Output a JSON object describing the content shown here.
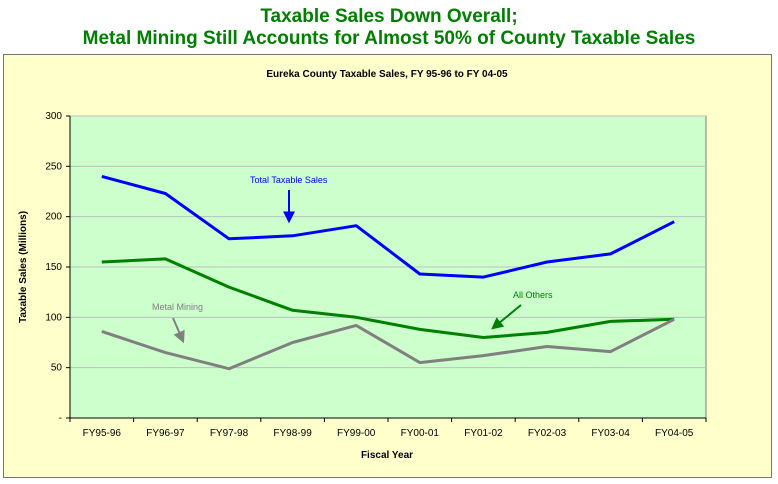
{
  "headline": {
    "line1": "Taxable Sales Down Overall;",
    "line2": "Metal Mining Still Accounts for Almost 50% of County Taxable Sales"
  },
  "colors": {
    "headline": "#008000",
    "frame_bg": "#ffffcc",
    "plot_bg": "#ccffcc",
    "total": "#0000ff",
    "others": "#008000",
    "metal": "#808080",
    "grid": "#c0c0c0"
  },
  "chart_data": {
    "type": "line",
    "title": "Eureka County Taxable Sales, FY 95-96 to FY 04-05",
    "xlabel": "Fiscal Year",
    "ylabel": "Taxable Sales (Millions)",
    "ylim": [
      0,
      300
    ],
    "yticks": [
      "-",
      "50",
      "100",
      "150",
      "200",
      "250",
      "300"
    ],
    "grid": true,
    "categories": [
      "FY95-96",
      "FY96-97",
      "FY97-98",
      "FY98-99",
      "FY99-00",
      "FY00-01",
      "FY01-02",
      "FY02-03",
      "FY03-04",
      "FY04-05"
    ],
    "series": [
      {
        "name": "Total Taxable Sales",
        "color": "#0000ff",
        "values": [
          240,
          223,
          178,
          181,
          191,
          143,
          140,
          155,
          163,
          195
        ]
      },
      {
        "name": "All Others",
        "color": "#008000",
        "values": [
          155,
          158,
          130,
          107,
          100,
          88,
          80,
          85,
          96,
          98
        ]
      },
      {
        "name": "Metal Mining",
        "color": "#808080",
        "values": [
          86,
          65,
          49,
          75,
          92,
          55,
          62,
          71,
          66,
          98
        ]
      }
    ],
    "annotations": [
      {
        "text": "Total Taxable Sales",
        "series": "Total Taxable Sales"
      },
      {
        "text": "All Others",
        "series": "All Others"
      },
      {
        "text": "Metal Mining",
        "series": "Metal Mining"
      }
    ]
  }
}
